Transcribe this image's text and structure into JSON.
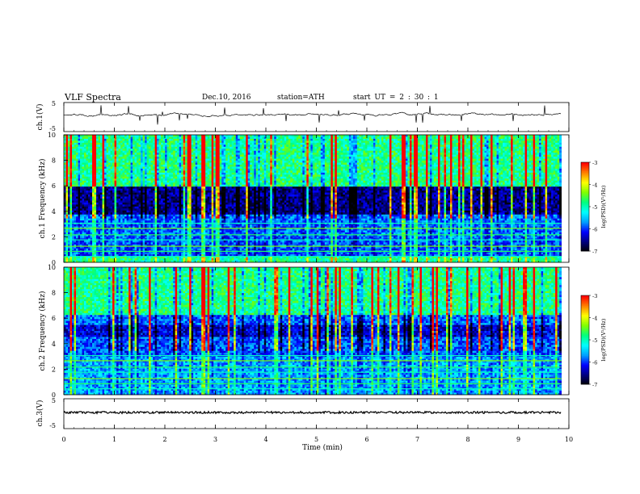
{
  "header": {
    "title": "VLF  Spectra",
    "date": "Dec.10, 2016",
    "station": "station=ATH",
    "start_ut": "start  UT  =   2  : 30 : 1"
  },
  "chart_data": [
    {
      "type": "line",
      "ylabel": "ch.1(V)",
      "ylim": [
        -5,
        5
      ],
      "y_ticks": [
        "5",
        "-5"
      ],
      "description_level": 0,
      "series_color": "#000000"
    },
    {
      "type": "heatmap",
      "ylabel": "ch.1 Frequency (kHz)",
      "ylim": [
        0,
        10
      ],
      "y_ticks": [
        "0",
        "2",
        "4",
        "6",
        "8",
        "10"
      ],
      "colorbar": {
        "label": "log(PSD)(V²/Hz)",
        "range": [
          -7,
          -3
        ],
        "ticks": [
          "-3",
          "-4",
          "-5",
          "-6",
          "-7"
        ]
      }
    },
    {
      "type": "heatmap",
      "ylabel": "ch.2 Frequency (kHz)",
      "ylim": [
        0,
        10
      ],
      "y_ticks": [
        "0",
        "2",
        "4",
        "6",
        "8",
        "10"
      ],
      "colorbar": {
        "label": "log(PSD)(V²/Hz)",
        "range": [
          -7,
          -3
        ],
        "ticks": [
          "-3",
          "-4",
          "-5",
          "-6",
          "-7"
        ]
      }
    },
    {
      "type": "line",
      "ylabel": "ch.3(V)",
      "ylim": [
        -5,
        5
      ],
      "y_ticks": [
        "5",
        "-5"
      ],
      "series_color": "#000000"
    }
  ],
  "xaxis": {
    "label": "Time  (min)",
    "range": [
      0,
      10
    ],
    "ticks": [
      "0",
      "1",
      "2",
      "3",
      "4",
      "5",
      "6",
      "7",
      "8",
      "9",
      "10"
    ],
    "data_end": 9.85
  },
  "colors": {
    "spectrogram": [
      "#000000",
      "#000080",
      "#0000ff",
      "#00a0ff",
      "#00ffff",
      "#00ff80",
      "#80ff00",
      "#ffff00",
      "#ff8000",
      "#ff0000",
      "#ffffff"
    ]
  }
}
